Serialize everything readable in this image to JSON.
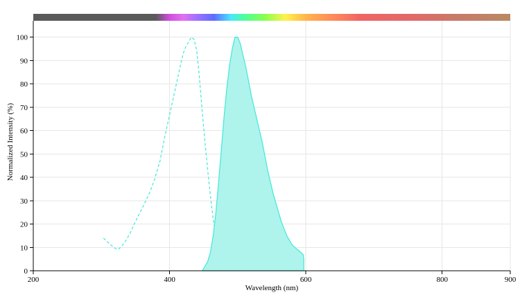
{
  "chart_data": {
    "type": "area",
    "xlabel": "Wavelength (nm)",
    "ylabel": "Normalized Intensity (%)",
    "xlim": [
      200,
      900
    ],
    "ylim": [
      0,
      107
    ],
    "x_ticks": [
      200,
      400,
      600,
      800,
      900
    ],
    "y_ticks": [
      0,
      10,
      20,
      30,
      40,
      50,
      60,
      70,
      80,
      90,
      100
    ],
    "grid": true,
    "legend": "none",
    "spectrum_bar": {
      "stops": [
        {
          "nm": 200,
          "color": "#5a5a5a"
        },
        {
          "nm": 380,
          "color": "#5a5a5a"
        },
        {
          "nm": 400,
          "color": "#d24de0"
        },
        {
          "nm": 420,
          "color": "#e070f0"
        },
        {
          "nm": 440,
          "color": "#a070ff"
        },
        {
          "nm": 465,
          "color": "#5f6bff"
        },
        {
          "nm": 490,
          "color": "#4be6ff"
        },
        {
          "nm": 510,
          "color": "#4dff9a"
        },
        {
          "nm": 540,
          "color": "#8aff4d"
        },
        {
          "nm": 570,
          "color": "#fff24d"
        },
        {
          "nm": 600,
          "color": "#ffb44d"
        },
        {
          "nm": 640,
          "color": "#ff8a5a"
        },
        {
          "nm": 680,
          "color": "#f06464"
        },
        {
          "nm": 760,
          "color": "#e06a6a"
        },
        {
          "nm": 820,
          "color": "#c87a6a"
        },
        {
          "nm": 900,
          "color": "#b98a62"
        }
      ]
    },
    "series": [
      {
        "style": "dashed",
        "color": "#40e8d8",
        "x": [
          303,
          310,
          318,
          324,
          330,
          336,
          342,
          348,
          355,
          362,
          370,
          378,
          386,
          392,
          398,
          404,
          410,
          416,
          420,
          424,
          428,
          432,
          436,
          440,
          444,
          448,
          452,
          456,
          460,
          464,
          468,
          472,
          476,
          480,
          481
        ],
        "y": [
          14,
          12,
          10,
          9,
          10.5,
          13,
          16,
          20,
          24,
          28,
          33,
          39,
          47,
          56,
          64,
          72,
          80,
          88,
          93,
          96,
          98,
          100,
          99,
          94,
          82,
          68,
          55,
          43,
          32,
          22,
          14,
          9,
          5,
          1,
          0
        ]
      },
      {
        "style": "filled",
        "color": "#40e8d8",
        "fill": "#aef4ec",
        "x": [
          448,
          452,
          456,
          460,
          464,
          468,
          472,
          476,
          480,
          484,
          488,
          492,
          496,
          500,
          504,
          508,
          512,
          516,
          520,
          524,
          528,
          532,
          536,
          540,
          544,
          548,
          552,
          556,
          560,
          564,
          568,
          572,
          576,
          580,
          584,
          588,
          592,
          596,
          597,
          597
        ],
        "y": [
          0,
          2,
          4,
          8,
          15,
          25,
          38,
          52,
          66,
          78,
          88,
          95,
          100,
          100,
          97,
          92,
          87,
          81,
          75,
          70,
          65,
          60,
          55,
          49,
          43,
          38,
          33,
          29,
          25,
          21,
          18,
          15,
          13,
          11,
          10,
          9,
          8,
          7,
          5,
          0
        ]
      }
    ]
  }
}
